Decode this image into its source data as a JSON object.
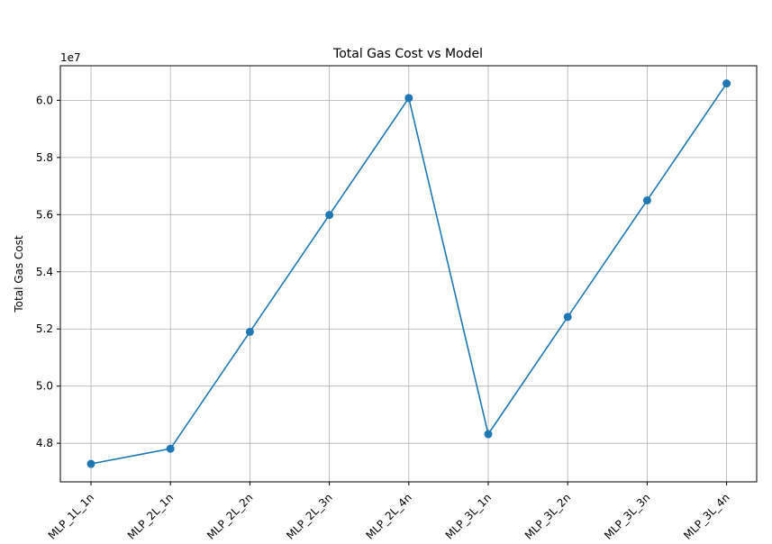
{
  "chart_data": {
    "type": "line",
    "title": "Total Gas Cost vs Model",
    "xlabel": "",
    "ylabel": "Total Gas Cost",
    "offset_label": "1e7",
    "categories": [
      "MLP_1L_1n",
      "MLP_2L_1n",
      "MLP_2L_2n",
      "MLP_2L_3n",
      "MLP_2L_4n",
      "MLP_3L_1n",
      "MLP_3L_2n",
      "MLP_3L_3n",
      "MLP_3L_4n"
    ],
    "series": [
      {
        "values": [
          47280000,
          47810000,
          51900000,
          55990000,
          60080000,
          48320000,
          52420000,
          56500000,
          60590000
        ]
      }
    ],
    "yticks": [
      4.8,
      5.0,
      5.2,
      5.4,
      5.6,
      5.8,
      6.0
    ],
    "ytick_labels": [
      "4.8",
      "5.0",
      "5.2",
      "5.4",
      "5.6",
      "5.8",
      "6.0"
    ],
    "ylim": [
      46650000,
      61210000
    ],
    "grid": true,
    "legend": "none",
    "colors": {
      "line": "#1f77b4",
      "marker": "#1f77b4",
      "grid": "#b0b0b0"
    }
  }
}
